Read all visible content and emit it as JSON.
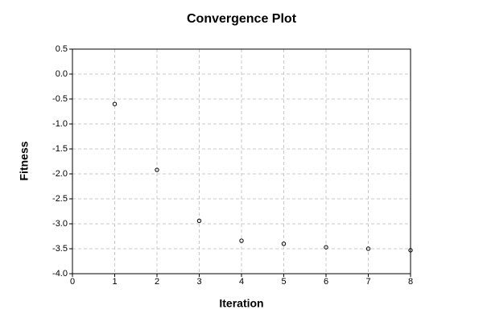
{
  "chart_data": {
    "type": "scatter",
    "title": "Convergence Plot",
    "x_label": "Iteration",
    "y_label": "Fitness",
    "x": [
      1,
      2,
      3,
      4,
      5,
      6,
      7,
      8
    ],
    "values": [
      -0.6,
      -1.92,
      -2.94,
      -3.34,
      -3.4,
      -3.47,
      -3.5,
      -3.53
    ],
    "color": "#000000",
    "xlim": [
      0,
      8
    ],
    "xticks": [
      0,
      1,
      2,
      3,
      4,
      5,
      6,
      7,
      8
    ],
    "ylim": [
      -4.0,
      0.5
    ],
    "yticks": [
      0.5,
      {
        "value": 0,
        "label": "0.0"
      },
      -0.5,
      {
        "value": -1,
        "label": "-1.0"
      },
      -1.5,
      {
        "value": -2,
        "label": "-2.0"
      },
      -2.5,
      {
        "value": -3,
        "label": "-3.0"
      },
      -3.5,
      {
        "value": -4,
        "label": "-4.0"
      }
    ],
    "grid": true
  }
}
